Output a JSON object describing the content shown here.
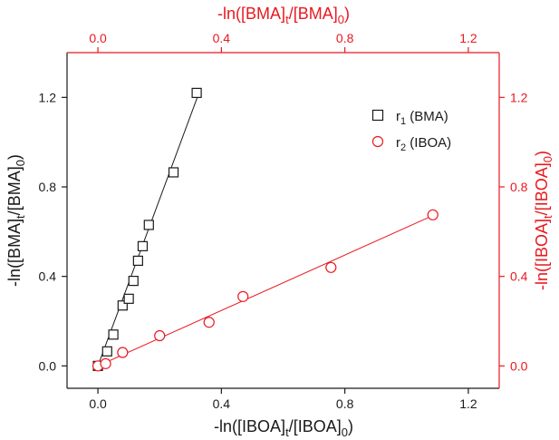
{
  "chart_data": {
    "type": "scatter",
    "colors": {
      "black": "#1a1a1a",
      "red": "#e8191f"
    },
    "x_bottom": {
      "label": "-ln([IBOA]t/[IBOA]0)",
      "ticks": [
        "0.0",
        "0.4",
        "0.8",
        "1.2"
      ],
      "range": [
        -0.1,
        1.3
      ]
    },
    "x_top": {
      "label": "-ln([BMA]t/[BMA]0)",
      "ticks": [
        "0.0",
        "0.4",
        "0.8",
        "1.2"
      ],
      "range": [
        -0.1,
        1.3
      ]
    },
    "y_left": {
      "label": "-ln([BMA]t/[BMA]0)",
      "ticks": [
        "0.0",
        "0.4",
        "0.8",
        "1.2"
      ],
      "range": [
        -0.1,
        1.4
      ]
    },
    "y_right": {
      "label": "-ln([IBOA]t/[IBOA]0)",
      "ticks": [
        "0.0",
        "0.4",
        "0.8",
        "1.2"
      ],
      "range": [
        -0.1,
        1.4
      ]
    },
    "legend_position": "top-right",
    "series": [
      {
        "name": "r1 (BMA)",
        "marker": "square",
        "color": "#1a1a1a",
        "x": [
          0.0,
          0.03,
          0.05,
          0.08,
          0.1,
          0.115,
          0.13,
          0.145,
          0.165,
          0.245,
          0.32
        ],
        "y": [
          0.0,
          0.065,
          0.14,
          0.27,
          0.3,
          0.38,
          0.47,
          0.535,
          0.63,
          0.865,
          1.22
        ],
        "fit": {
          "x": [
            0.0,
            0.33
          ],
          "y": [
            0.0,
            1.23
          ]
        }
      },
      {
        "name": "r2 (IBOA)",
        "marker": "circle",
        "color": "#e8191f",
        "x": [
          0.0,
          0.025,
          0.08,
          0.2,
          0.36,
          0.47,
          0.755,
          1.085
        ],
        "y": [
          0.0,
          0.01,
          0.06,
          0.135,
          0.195,
          0.31,
          0.44,
          0.675
        ],
        "fit": {
          "x": [
            0.0,
            1.09
          ],
          "y": [
            0.0,
            0.675
          ]
        }
      }
    ]
  }
}
